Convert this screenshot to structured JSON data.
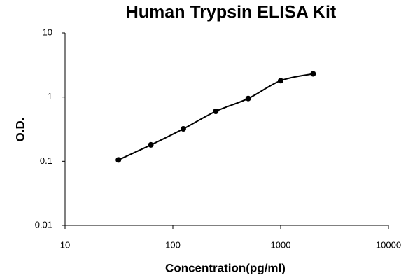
{
  "chart_data": {
    "type": "scatter",
    "title": "Human Trypsin ELISA Kit",
    "x_label": "Concentration(pg/ml)",
    "y_label": "O.D.",
    "x": [
      31.25,
      62.5,
      125,
      250,
      500,
      1000,
      2000
    ],
    "series": [
      {
        "color": "#000000",
        "values": [
          0.105,
          0.18,
          0.32,
          0.6,
          0.95,
          1.8,
          2.3
        ]
      }
    ],
    "xscale": "log",
    "yscale": "log",
    "xlim": [
      10,
      10000
    ],
    "ylim": [
      0.01,
      10
    ],
    "xticks": [
      10,
      100,
      1000,
      10000
    ],
    "yticks": [
      0.01,
      0.1,
      1,
      10
    ],
    "fit_line": true
  }
}
